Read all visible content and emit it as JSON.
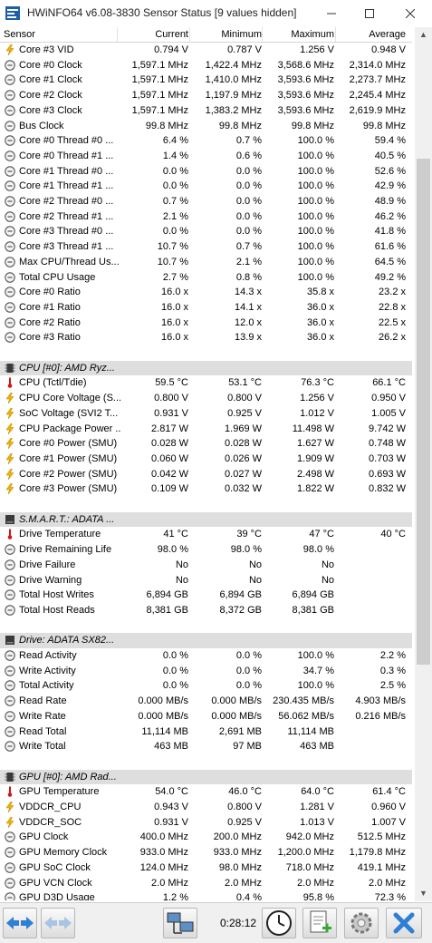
{
  "window": {
    "title": "HWiNFO64 v6.08-3830 Sensor Status [9 values hidden]"
  },
  "columns": {
    "sensor": "Sensor",
    "current": "Current",
    "minimum": "Minimum",
    "maximum": "Maximum",
    "average": "Average"
  },
  "rows": [
    {
      "type": "volt",
      "name": "Core #3 VID",
      "cur": "0.794 V",
      "min": "0.787 V",
      "max": "1.256 V",
      "avg": "0.948 V"
    },
    {
      "type": "clock",
      "name": "Core #0 Clock",
      "cur": "1,597.1 MHz",
      "min": "1,422.4 MHz",
      "max": "3,568.6 MHz",
      "avg": "2,314.0 MHz"
    },
    {
      "type": "clock",
      "name": "Core #1 Clock",
      "cur": "1,597.1 MHz",
      "min": "1,410.0 MHz",
      "max": "3,593.6 MHz",
      "avg": "2,273.7 MHz"
    },
    {
      "type": "clock",
      "name": "Core #2 Clock",
      "cur": "1,597.1 MHz",
      "min": "1,197.9 MHz",
      "max": "3,593.6 MHz",
      "avg": "2,245.4 MHz"
    },
    {
      "type": "clock",
      "name": "Core #3 Clock",
      "cur": "1,597.1 MHz",
      "min": "1,383.2 MHz",
      "max": "3,593.6 MHz",
      "avg": "2,619.9 MHz"
    },
    {
      "type": "clock",
      "name": "Bus Clock",
      "cur": "99.8 MHz",
      "min": "99.8 MHz",
      "max": "99.8 MHz",
      "avg": "99.8 MHz"
    },
    {
      "type": "clock",
      "name": "Core #0 Thread #0 ...",
      "cur": "6.4 %",
      "min": "0.7 %",
      "max": "100.0 %",
      "avg": "59.4 %"
    },
    {
      "type": "clock",
      "name": "Core #0 Thread #1 ...",
      "cur": "1.4 %",
      "min": "0.6 %",
      "max": "100.0 %",
      "avg": "40.5 %"
    },
    {
      "type": "clock",
      "name": "Core #1 Thread #0 ...",
      "cur": "0.0 %",
      "min": "0.0 %",
      "max": "100.0 %",
      "avg": "52.6 %"
    },
    {
      "type": "clock",
      "name": "Core #1 Thread #1 ...",
      "cur": "0.0 %",
      "min": "0.0 %",
      "max": "100.0 %",
      "avg": "42.9 %"
    },
    {
      "type": "clock",
      "name": "Core #2 Thread #0 ...",
      "cur": "0.7 %",
      "min": "0.0 %",
      "max": "100.0 %",
      "avg": "48.9 %"
    },
    {
      "type": "clock",
      "name": "Core #2 Thread #1 ...",
      "cur": "2.1 %",
      "min": "0.0 %",
      "max": "100.0 %",
      "avg": "46.2 %"
    },
    {
      "type": "clock",
      "name": "Core #3 Thread #0 ...",
      "cur": "0.0 %",
      "min": "0.0 %",
      "max": "100.0 %",
      "avg": "41.8 %"
    },
    {
      "type": "clock",
      "name": "Core #3 Thread #1 ...",
      "cur": "10.7 %",
      "min": "0.7 %",
      "max": "100.0 %",
      "avg": "61.6 %"
    },
    {
      "type": "clock",
      "name": "Max CPU/Thread Us...",
      "cur": "10.7 %",
      "min": "2.1 %",
      "max": "100.0 %",
      "avg": "64.5 %"
    },
    {
      "type": "clock",
      "name": "Total CPU Usage",
      "cur": "2.7 %",
      "min": "0.8 %",
      "max": "100.0 %",
      "avg": "49.2 %"
    },
    {
      "type": "clock",
      "name": "Core #0 Ratio",
      "cur": "16.0 x",
      "min": "14.3 x",
      "max": "35.8 x",
      "avg": "23.2 x"
    },
    {
      "type": "clock",
      "name": "Core #1 Ratio",
      "cur": "16.0 x",
      "min": "14.1 x",
      "max": "36.0 x",
      "avg": "22.8 x"
    },
    {
      "type": "clock",
      "name": "Core #2 Ratio",
      "cur": "16.0 x",
      "min": "12.0 x",
      "max": "36.0 x",
      "avg": "22.5 x"
    },
    {
      "type": "clock",
      "name": "Core #3 Ratio",
      "cur": "16.0 x",
      "min": "13.9 x",
      "max": "36.0 x",
      "avg": "26.2 x"
    },
    {
      "type": "blank"
    },
    {
      "type": "group",
      "icon": "chip",
      "name": "CPU [#0]: AMD Ryz..."
    },
    {
      "type": "temp",
      "name": "CPU (Tctl/Tdie)",
      "cur": "59.5 °C",
      "min": "53.1 °C",
      "max": "76.3 °C",
      "avg": "66.1 °C"
    },
    {
      "type": "volt",
      "name": "CPU Core Voltage (S...",
      "cur": "0.800 V",
      "min": "0.800 V",
      "max": "1.256 V",
      "avg": "0.950 V"
    },
    {
      "type": "volt",
      "name": "SoC Voltage (SVI2 T...",
      "cur": "0.931 V",
      "min": "0.925 V",
      "max": "1.012 V",
      "avg": "1.005 V"
    },
    {
      "type": "volt",
      "name": "CPU Package Power ...",
      "cur": "2.817 W",
      "min": "1.969 W",
      "max": "11.498 W",
      "avg": "9.742 W"
    },
    {
      "type": "volt",
      "name": "Core #0 Power (SMU)",
      "cur": "0.028 W",
      "min": "0.028 W",
      "max": "1.627 W",
      "avg": "0.748 W"
    },
    {
      "type": "volt",
      "name": "Core #1 Power (SMU)",
      "cur": "0.060 W",
      "min": "0.026 W",
      "max": "1.909 W",
      "avg": "0.703 W"
    },
    {
      "type": "volt",
      "name": "Core #2 Power (SMU)",
      "cur": "0.042 W",
      "min": "0.027 W",
      "max": "2.498 W",
      "avg": "0.693 W"
    },
    {
      "type": "volt",
      "name": "Core #3 Power (SMU)",
      "cur": "0.109 W",
      "min": "0.032 W",
      "max": "1.822 W",
      "avg": "0.832 W"
    },
    {
      "type": "blank"
    },
    {
      "type": "group",
      "icon": "disk",
      "name": "S.M.A.R.T.: ADATA ..."
    },
    {
      "type": "temp",
      "name": "Drive Temperature",
      "cur": "41 °C",
      "min": "39 °C",
      "max": "47 °C",
      "avg": "40 °C"
    },
    {
      "type": "clock",
      "name": "Drive Remaining Life",
      "cur": "98.0 %",
      "min": "98.0 %",
      "max": "98.0 %",
      "avg": ""
    },
    {
      "type": "clock",
      "name": "Drive Failure",
      "cur": "No",
      "min": "No",
      "max": "No",
      "avg": ""
    },
    {
      "type": "clock",
      "name": "Drive Warning",
      "cur": "No",
      "min": "No",
      "max": "No",
      "avg": ""
    },
    {
      "type": "clock",
      "name": "Total Host Writes",
      "cur": "6,894 GB",
      "min": "6,894 GB",
      "max": "6,894 GB",
      "avg": ""
    },
    {
      "type": "clock",
      "name": "Total Host Reads",
      "cur": "8,381 GB",
      "min": "8,372 GB",
      "max": "8,381 GB",
      "avg": ""
    },
    {
      "type": "blank"
    },
    {
      "type": "group",
      "icon": "disk",
      "name": "Drive: ADATA SX82..."
    },
    {
      "type": "clock",
      "name": "Read Activity",
      "cur": "0.0 %",
      "min": "0.0 %",
      "max": "100.0 %",
      "avg": "2.2 %"
    },
    {
      "type": "clock",
      "name": "Write Activity",
      "cur": "0.0 %",
      "min": "0.0 %",
      "max": "34.7 %",
      "avg": "0.3 %"
    },
    {
      "type": "clock",
      "name": "Total Activity",
      "cur": "0.0 %",
      "min": "0.0 %",
      "max": "100.0 %",
      "avg": "2.5 %"
    },
    {
      "type": "clock",
      "name": "Read Rate",
      "cur": "0.000 MB/s",
      "min": "0.000 MB/s",
      "max": "230.435 MB/s",
      "avg": "4.903 MB/s"
    },
    {
      "type": "clock",
      "name": "Write Rate",
      "cur": "0.000 MB/s",
      "min": "0.000 MB/s",
      "max": "56.062 MB/s",
      "avg": "0.216 MB/s"
    },
    {
      "type": "clock",
      "name": "Read Total",
      "cur": "11,114 MB",
      "min": "2,691 MB",
      "max": "11,114 MB",
      "avg": ""
    },
    {
      "type": "clock",
      "name": "Write Total",
      "cur": "463 MB",
      "min": "97 MB",
      "max": "463 MB",
      "avg": ""
    },
    {
      "type": "blank"
    },
    {
      "type": "group",
      "icon": "chip",
      "name": "GPU [#0]: AMD Rad..."
    },
    {
      "type": "temp",
      "name": "GPU Temperature",
      "cur": "54.0 °C",
      "min": "46.0 °C",
      "max": "64.0 °C",
      "avg": "61.4 °C"
    },
    {
      "type": "volt",
      "name": "VDDCR_CPU",
      "cur": "0.943 V",
      "min": "0.800 V",
      "max": "1.281 V",
      "avg": "0.960 V"
    },
    {
      "type": "volt",
      "name": "VDDCR_SOC",
      "cur": "0.931 V",
      "min": "0.925 V",
      "max": "1.013 V",
      "avg": "1.007 V"
    },
    {
      "type": "clock",
      "name": "GPU Clock",
      "cur": "400.0 MHz",
      "min": "200.0 MHz",
      "max": "942.0 MHz",
      "avg": "512.5 MHz"
    },
    {
      "type": "clock",
      "name": "GPU Memory Clock",
      "cur": "933.0 MHz",
      "min": "933.0 MHz",
      "max": "1,200.0 MHz",
      "avg": "1,179.8 MHz"
    },
    {
      "type": "clock",
      "name": "GPU SoC Clock",
      "cur": "124.0 MHz",
      "min": "98.0 MHz",
      "max": "718.0 MHz",
      "avg": "419.1 MHz"
    },
    {
      "type": "clock",
      "name": "GPU VCN Clock",
      "cur": "2.0 MHz",
      "min": "2.0 MHz",
      "max": "2.0 MHz",
      "avg": "2.0 MHz"
    },
    {
      "type": "clock",
      "name": "GPU D3D Usage",
      "cur": "1.2 %",
      "min": "0.4 %",
      "max": "95.8 %",
      "avg": "72.3 %"
    }
  ],
  "toolbar": {
    "timer": "0:28:12"
  },
  "colors": {
    "group_bg": "#dedede",
    "accent_blue": "#2f7fd6"
  }
}
